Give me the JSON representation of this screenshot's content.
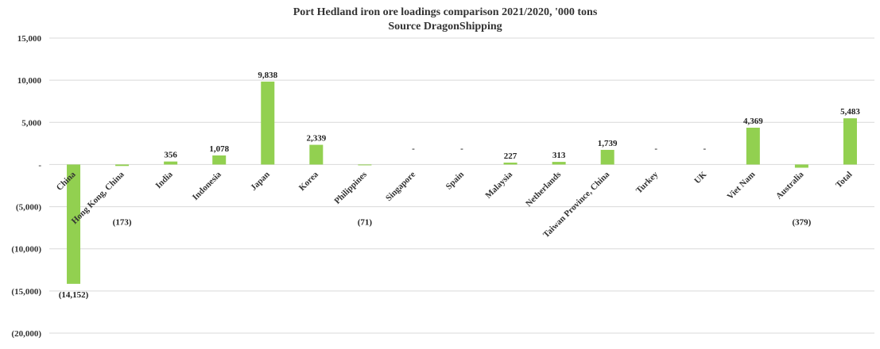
{
  "chart_data": {
    "type": "bar",
    "title": "Port Hedland iron ore loadings comparison 2021/2020, '000 tons",
    "subtitle": "Source DragonShipping",
    "xlabel": "",
    "ylabel": "",
    "ylim": [
      -20000,
      15000
    ],
    "yticks": [
      15000,
      10000,
      5000,
      0,
      -5000,
      -10000,
      -15000,
      -20000
    ],
    "ytick_labels": [
      "15,000",
      "10,000",
      "5,000",
      "-",
      "(5,000)",
      "(10,000)",
      "(15,000)",
      "(20,000)"
    ],
    "grid": true,
    "categories": [
      "China",
      "Hong Kong, China",
      "India",
      "Indonesia",
      "Japan",
      "Korea",
      "Philippines",
      "Singapore",
      "Spain",
      "Malaysia",
      "Netherlands",
      "Taiwan Province, China",
      "Turkey",
      "UK",
      "Viet Nam",
      "Australia",
      "Total"
    ],
    "values": [
      -14152,
      -173,
      356,
      1078,
      9838,
      2339,
      -71,
      0,
      0,
      227,
      313,
      1739,
      0,
      0,
      4369,
      -379,
      5483
    ],
    "data_labels": [
      "(14,152)",
      "(173)",
      "356",
      "1,078",
      "9,838",
      "2,339",
      "(71)",
      "-",
      "-",
      "227",
      "313",
      "1,739",
      "-",
      "-",
      "4,369",
      "(379)",
      "5,483"
    ],
    "bar_color": "#92d050"
  }
}
